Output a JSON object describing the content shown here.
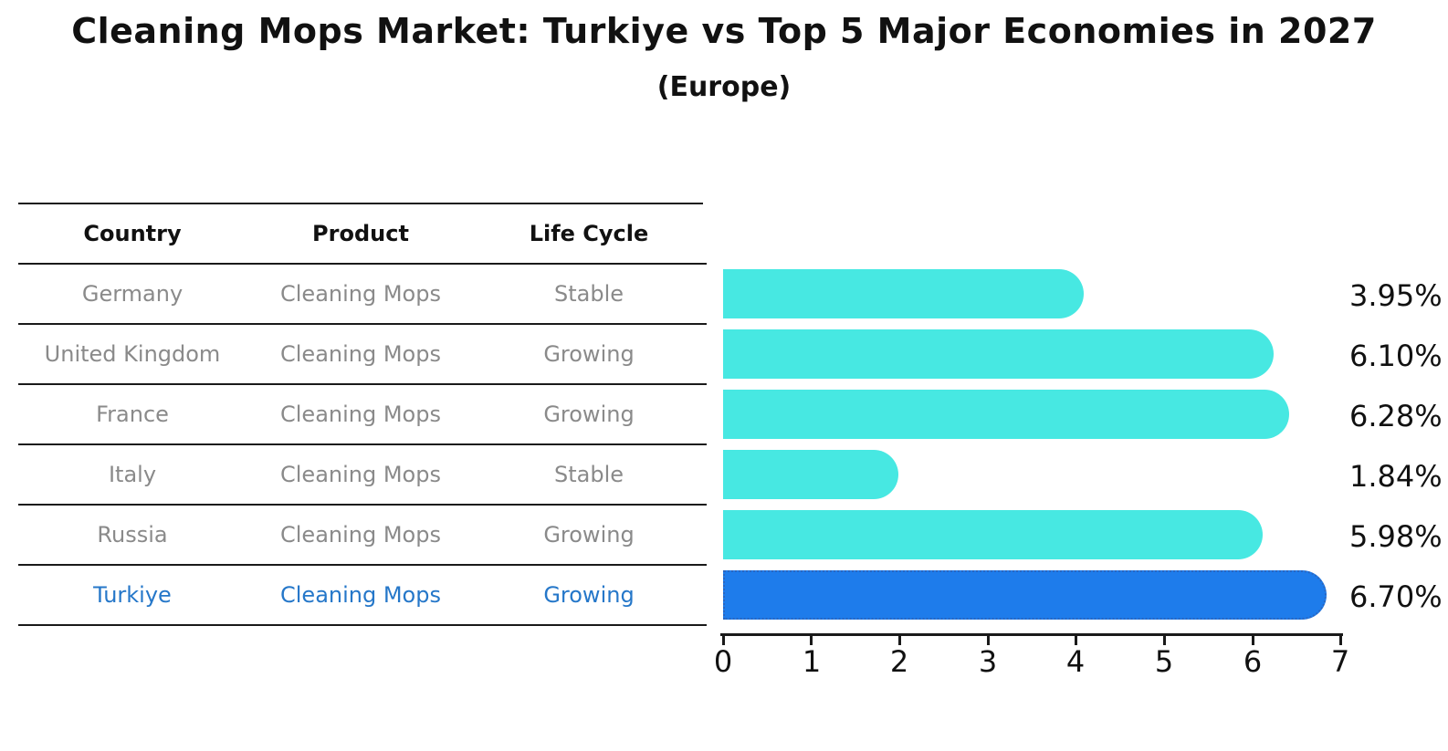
{
  "title": "Cleaning Mops Market: Turkiye vs Top 5 Major Economies in 2027",
  "subtitle": "(Europe)",
  "table": {
    "headers": [
      "Country",
      "Product",
      "Life Cycle"
    ],
    "rows": [
      {
        "country": "Germany",
        "product": "Cleaning Mops",
        "life_cycle": "Stable",
        "highlighted": false
      },
      {
        "country": "United Kingdom",
        "product": "Cleaning Mops",
        "life_cycle": "Growing",
        "highlighted": false
      },
      {
        "country": "France",
        "product": "Cleaning Mops",
        "life_cycle": "Growing",
        "highlighted": false
      },
      {
        "country": "Italy",
        "product": "Cleaning Mops",
        "life_cycle": "Stable",
        "highlighted": false
      },
      {
        "country": "Russia",
        "product": "Cleaning Mops",
        "life_cycle": "Growing",
        "highlighted": false
      },
      {
        "country": "Turkiye",
        "product": "Cleaning Mops",
        "life_cycle": "Growing",
        "highlighted": true
      }
    ]
  },
  "chart_data": {
    "type": "bar",
    "orientation": "horizontal",
    "title": "Cleaning Mops Market: Turkiye vs Top 5 Major Economies in 2027",
    "subtitle": "(Europe)",
    "categories": [
      "Germany",
      "United Kingdom",
      "France",
      "Italy",
      "Russia",
      "Turkiye"
    ],
    "values": [
      3.95,
      6.1,
      6.28,
      1.84,
      5.98,
      6.7
    ],
    "value_labels": [
      "3.95%",
      "6.10%",
      "6.28%",
      "1.84%",
      "5.98%",
      "6.70%"
    ],
    "x_ticks": [
      "0",
      "1",
      "2",
      "3",
      "4",
      "5",
      "6",
      "7"
    ],
    "xlim": [
      0,
      7
    ],
    "grid": false,
    "legend": "none",
    "highlight_index": 5
  },
  "colors": {
    "bar": "#47E8E2",
    "highlight_bar": "#1E7CEB",
    "highlight_border": "#2A66C0",
    "highlight_text": "#2577C9",
    "row_text": "#8A8A8A",
    "header_text": "#111111",
    "line": "#1A1A1A"
  }
}
